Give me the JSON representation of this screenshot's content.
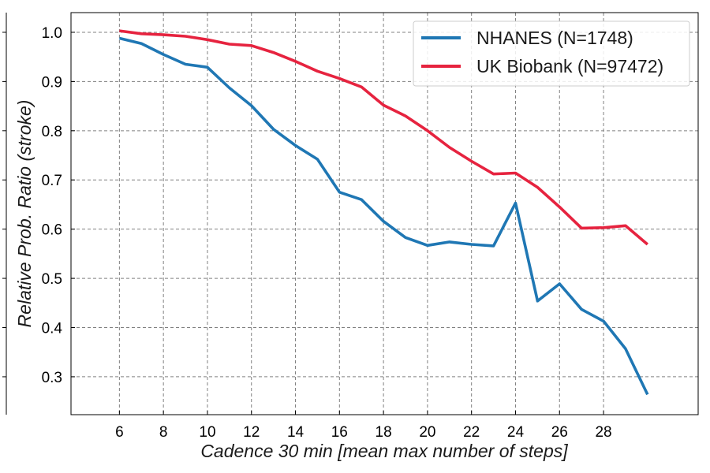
{
  "chart_data": {
    "type": "line",
    "title": "",
    "xlabel": "Cadence 30 min [mean max number of steps]",
    "ylabel": "Relative Prob. Ratio (stroke)",
    "xlim": [
      3.8,
      32.3
    ],
    "ylim": [
      0.223,
      1.04
    ],
    "xticks": [
      6,
      8,
      10,
      12,
      14,
      16,
      18,
      20,
      22,
      24,
      26,
      28
    ],
    "yticks": [
      0.3,
      0.4,
      0.5,
      0.6,
      0.7,
      0.8,
      0.9,
      1.0
    ],
    "ytick_labels": [
      "0.3",
      "0.4",
      "0.5",
      "0.6",
      "0.7",
      "0.8",
      "0.9",
      "1.0"
    ],
    "grid": true,
    "legend_position": "top-right",
    "series": [
      {
        "name": "NHANES (N=1748)",
        "color": "#1f77b4",
        "x": [
          6,
          7,
          8,
          9,
          10,
          11,
          12,
          13,
          14,
          15,
          16,
          17,
          18,
          19,
          20,
          21,
          22,
          23,
          24,
          25,
          26,
          27,
          28,
          29,
          30
        ],
        "y": [
          0.988,
          0.977,
          0.955,
          0.935,
          0.929,
          0.887,
          0.851,
          0.803,
          0.77,
          0.742,
          0.675,
          0.66,
          0.616,
          0.583,
          0.567,
          0.574,
          0.569,
          0.566,
          0.653,
          0.454,
          0.489,
          0.437,
          0.413,
          0.357,
          0.264
        ]
      },
      {
        "name": "UK Biobank (N=97472)",
        "color": "#e6233f",
        "x": [
          6,
          7,
          8,
          9,
          10,
          11,
          12,
          13,
          14,
          15,
          16,
          17,
          18,
          19,
          20,
          21,
          22,
          23,
          24,
          25,
          26,
          27,
          28,
          29,
          30
        ],
        "y": [
          1.003,
          0.997,
          0.995,
          0.992,
          0.985,
          0.976,
          0.973,
          0.959,
          0.941,
          0.921,
          0.906,
          0.889,
          0.852,
          0.83,
          0.8,
          0.766,
          0.738,
          0.712,
          0.714,
          0.685,
          0.645,
          0.602,
          0.603,
          0.607,
          0.569
        ]
      }
    ]
  }
}
